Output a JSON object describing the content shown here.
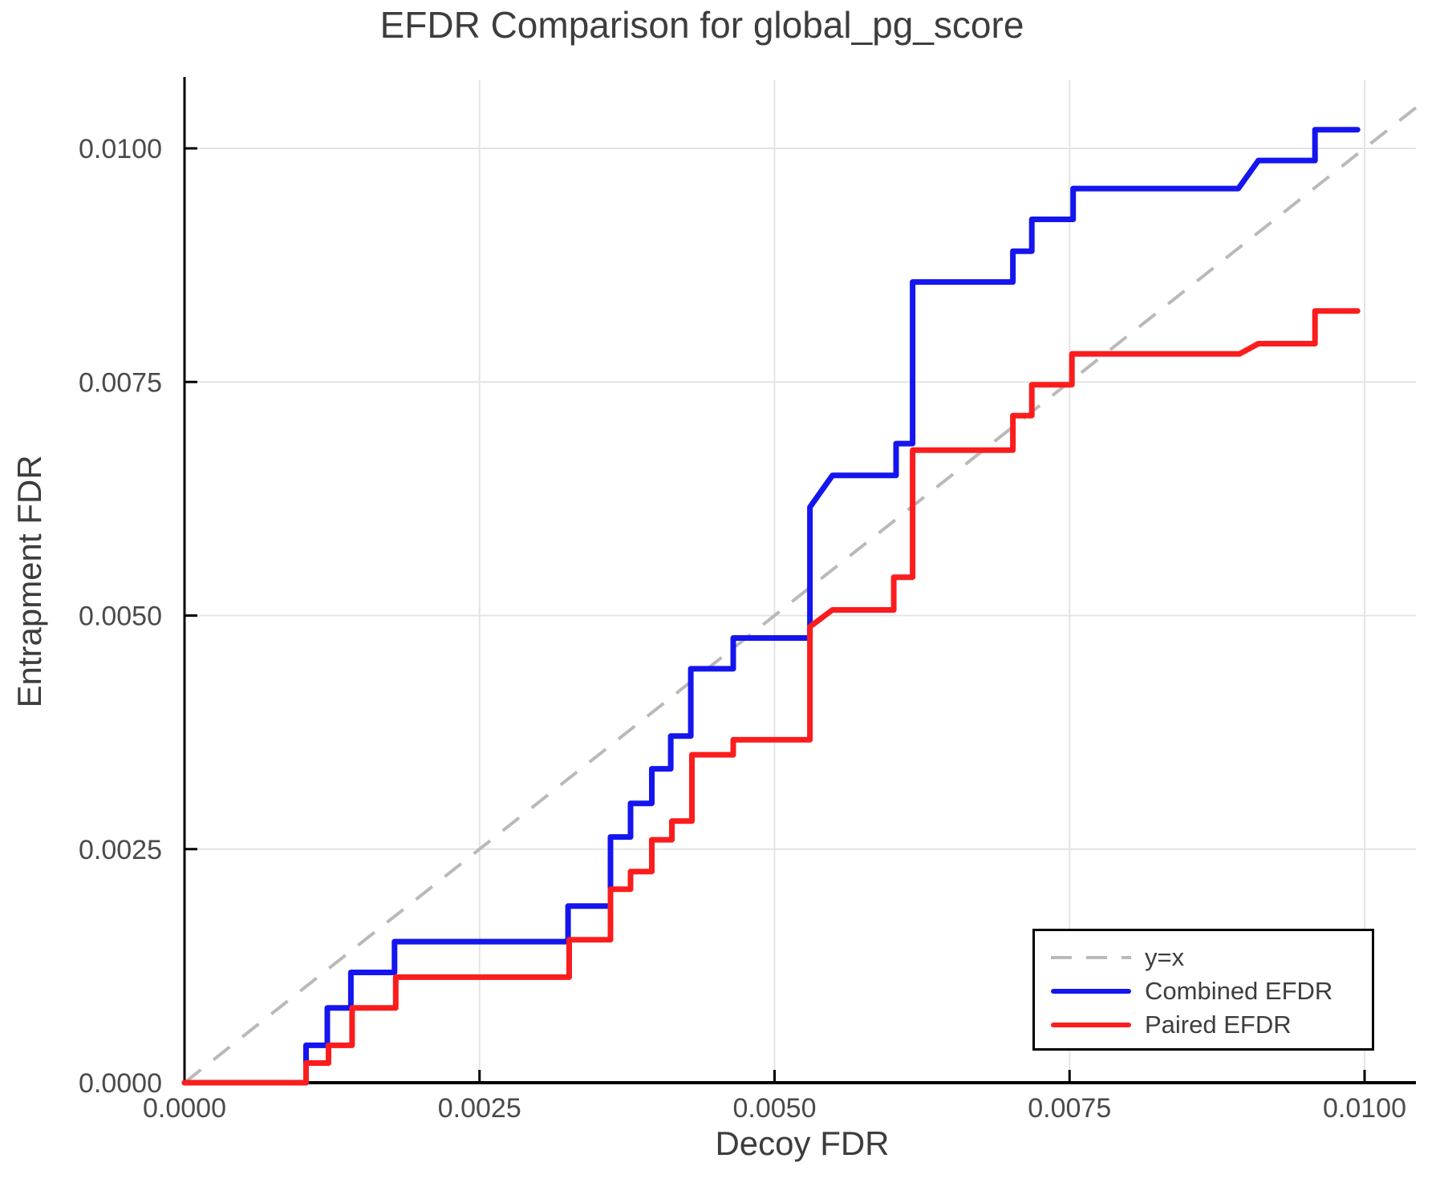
{
  "chart_data": {
    "type": "line",
    "title": "EFDR Comparison for global_pg_score",
    "xlabel": "Decoy FDR",
    "ylabel": "Entrapment FDR",
    "xlim": [
      0,
      0.01044
    ],
    "ylim": [
      0,
      0.01073
    ],
    "grid": true,
    "legend_position": "bottom-right",
    "xticks": {
      "values": [
        0,
        0.0025,
        0.005,
        0.0075,
        0.01
      ],
      "labels": [
        "0.0000",
        "0.0025",
        "0.0050",
        "0.0075",
        "0.0100"
      ]
    },
    "yticks": {
      "values": [
        0,
        0.0025,
        0.005,
        0.0075,
        0.01
      ],
      "labels": [
        "0.0000",
        "0.0025",
        "0.0050",
        "0.0075",
        "0.0100"
      ]
    },
    "colors": {
      "grid": "#e4e4e4",
      "axis": "#000000",
      "text": "#3d3d3d"
    },
    "series": [
      {
        "name": "y=x",
        "style": "dashed",
        "color": "#b9b9b9",
        "points": [
          [
            0,
            0
          ],
          [
            0.01044,
            0.01044
          ]
        ]
      },
      {
        "name": "Combined EFDR",
        "style": "solid",
        "color": "#1515ef",
        "points": [
          [
            0,
            0
          ],
          [
            0.00103,
            0
          ],
          [
            0.00103,
            0.0004
          ],
          [
            0.00121,
            0.0004
          ],
          [
            0.00121,
            0.0008
          ],
          [
            0.00141,
            0.0008
          ],
          [
            0.00141,
            0.00118
          ],
          [
            0.00178,
            0.00118
          ],
          [
            0.00178,
            0.00151
          ],
          [
            0.00325,
            0.00151
          ],
          [
            0.00325,
            0.00189
          ],
          [
            0.00361,
            0.00189
          ],
          [
            0.00361,
            0.00263
          ],
          [
            0.00378,
            0.00263
          ],
          [
            0.00378,
            0.00299
          ],
          [
            0.00396,
            0.00299
          ],
          [
            0.00396,
            0.00336
          ],
          [
            0.00412,
            0.00336
          ],
          [
            0.00412,
            0.00371
          ],
          [
            0.00429,
            0.00371
          ],
          [
            0.00429,
            0.00443
          ],
          [
            0.00465,
            0.00443
          ],
          [
            0.00465,
            0.00476
          ],
          [
            0.0053,
            0.00476
          ],
          [
            0.0053,
            0.00616
          ],
          [
            0.00549,
            0.0065
          ],
          [
            0.00603,
            0.0065
          ],
          [
            0.00603,
            0.00684
          ],
          [
            0.00617,
            0.00684
          ],
          [
            0.00617,
            0.00857
          ],
          [
            0.00702,
            0.00857
          ],
          [
            0.00702,
            0.0089
          ],
          [
            0.00718,
            0.0089
          ],
          [
            0.00718,
            0.00924
          ],
          [
            0.00753,
            0.00924
          ],
          [
            0.00753,
            0.00957
          ],
          [
            0.00893,
            0.00957
          ],
          [
            0.0091,
            0.00987
          ],
          [
            0.00958,
            0.00987
          ],
          [
            0.00958,
            0.0102
          ],
          [
            0.00994,
            0.0102
          ]
        ]
      },
      {
        "name": "Paired EFDR",
        "style": "solid",
        "color": "#fb1d1d",
        "points": [
          [
            0,
            0
          ],
          [
            0.00103,
            0
          ],
          [
            0.00103,
            0.00021
          ],
          [
            0.00122,
            0.00021
          ],
          [
            0.00122,
            0.0004
          ],
          [
            0.00142,
            0.0004
          ],
          [
            0.00142,
            0.0008
          ],
          [
            0.00179,
            0.0008
          ],
          [
            0.00179,
            0.00113
          ],
          [
            0.00326,
            0.00113
          ],
          [
            0.00326,
            0.00153
          ],
          [
            0.00361,
            0.00153
          ],
          [
            0.00361,
            0.00207
          ],
          [
            0.00378,
            0.00207
          ],
          [
            0.00378,
            0.00226
          ],
          [
            0.00396,
            0.00226
          ],
          [
            0.00396,
            0.0026
          ],
          [
            0.00413,
            0.0026
          ],
          [
            0.00413,
            0.0028
          ],
          [
            0.0043,
            0.0028
          ],
          [
            0.0043,
            0.00351
          ],
          [
            0.00465,
            0.00351
          ],
          [
            0.00465,
            0.00367
          ],
          [
            0.0053,
            0.00367
          ],
          [
            0.0053,
            0.00488
          ],
          [
            0.00549,
            0.00506
          ],
          [
            0.00601,
            0.00506
          ],
          [
            0.00601,
            0.00541
          ],
          [
            0.00617,
            0.00541
          ],
          [
            0.00617,
            0.00677
          ],
          [
            0.00702,
            0.00677
          ],
          [
            0.00702,
            0.00714
          ],
          [
            0.00718,
            0.00714
          ],
          [
            0.00718,
            0.00747
          ],
          [
            0.00752,
            0.00747
          ],
          [
            0.00752,
            0.0078
          ],
          [
            0.00894,
            0.0078
          ],
          [
            0.0091,
            0.00791
          ],
          [
            0.00958,
            0.00791
          ],
          [
            0.00958,
            0.00826
          ],
          [
            0.00994,
            0.00826
          ]
        ]
      }
    ]
  }
}
